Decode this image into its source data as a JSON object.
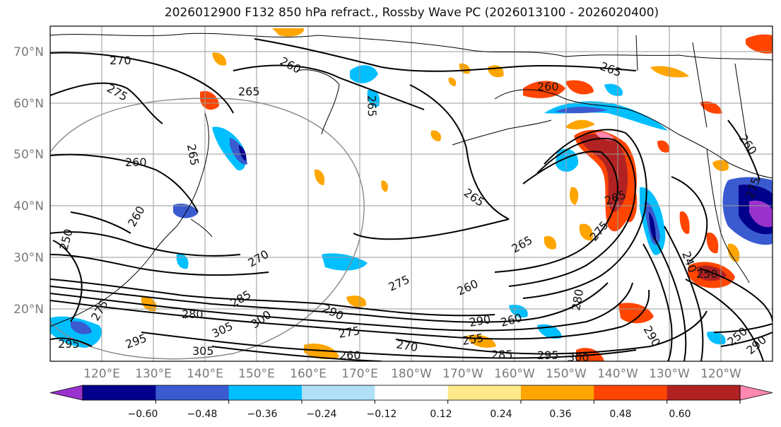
{
  "title": "2026012900 F132 850 hPa refract., Rossby Wave PC (2026013100 - 2026020400)",
  "latitude_labels": [
    "70°N",
    "60°N",
    "50°N",
    "40°N",
    "30°N",
    "20°N"
  ],
  "longitude_labels": [
    "120°E",
    "130°E",
    "140°E",
    "150°E",
    "160°E",
    "170°E",
    "180°W",
    "170°W",
    "160°W",
    "150°W",
    "140°W",
    "130°W",
    "120°W"
  ],
  "colorbar": {
    "ticks": [
      "−0.60",
      "−0.48",
      "−0.36",
      "−0.24",
      "−0.12",
      "0.12",
      "0.24",
      "0.36",
      "0.48",
      "0.60"
    ],
    "colors": [
      "#9932cc",
      "#00008b",
      "#3a5bd0",
      "#00bfff",
      "#b0e0f8",
      "#ffffff",
      "#ffe98a",
      "#ffa500",
      "#ff4500",
      "#b22222",
      "#ff88b0"
    ]
  },
  "contour_labels": [
    "270",
    "275",
    "260",
    "265",
    "260",
    "265",
    "265",
    "260",
    "265",
    "260",
    "265",
    "260",
    "250",
    "265",
    "265",
    "270",
    "275",
    "260",
    "285",
    "280",
    "290",
    "280",
    "275",
    "290",
    "295",
    "305",
    "300",
    "305",
    "275",
    "260",
    "295",
    "270",
    "255",
    "285",
    "295",
    "300",
    "260",
    "240",
    "250",
    "250",
    "290",
    "290",
    "275",
    "275"
  ],
  "colors": {
    "contour": "#000000",
    "grid": "#9a9a9a",
    "coast": "#000000",
    "axis_text": "#7a7a7a"
  }
}
